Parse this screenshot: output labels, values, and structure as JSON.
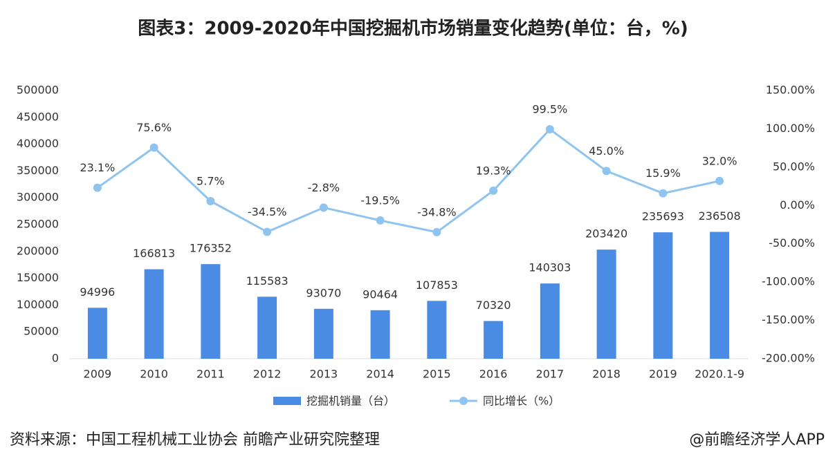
{
  "chart_data": {
    "type": "bar-line",
    "title": "图表3：2009-2020年中国挖掘机市场销量变化趋势(单位：台，%)",
    "categories": [
      "2009",
      "2010",
      "2011",
      "2012",
      "2013",
      "2014",
      "2015",
      "2016",
      "2017",
      "2018",
      "2019",
      "2020.1-9"
    ],
    "series": [
      {
        "name": "挖掘机销量（台）",
        "type": "bar",
        "color": "#4a8be3",
        "values": [
          94996,
          166813,
          176352,
          115583,
          93070,
          90464,
          107853,
          70320,
          140303,
          203420,
          235693,
          236508
        ]
      },
      {
        "name": "同比增长（%）",
        "type": "line",
        "axis": "y2",
        "color": "#8fc4f0",
        "values": [
          23.1,
          75.6,
          5.7,
          -34.5,
          -2.8,
          -19.5,
          -34.8,
          19.3,
          99.5,
          45.0,
          15.9,
          32.0
        ],
        "value_labels": [
          "23.1%",
          "75.6%",
          "5.7%",
          "-34.5%",
          "-2.8%",
          "-19.5%",
          "-34.8%",
          "19.3%",
          "99.5%",
          "45.0%",
          "15.9%",
          "32.0%"
        ]
      }
    ],
    "ylim": [
      0,
      500000
    ],
    "yticks": [
      0,
      50000,
      100000,
      150000,
      200000,
      250000,
      300000,
      350000,
      400000,
      450000,
      500000
    ],
    "y2lim": [
      -200,
      150
    ],
    "y2ticks": [
      {
        "value": -200,
        "label": "-200.00%"
      },
      {
        "value": -150,
        "label": "-150.00%"
      },
      {
        "value": -100,
        "label": "-100.00%"
      },
      {
        "value": -50,
        "label": "-50.00%"
      },
      {
        "value": 0,
        "label": "0.00%"
      },
      {
        "value": 50,
        "label": "50.00%"
      },
      {
        "value": 100,
        "label": "100.00%"
      },
      {
        "value": 150,
        "label": "150.00%"
      }
    ],
    "source": "资料来源：中国工程机械工业协会 前瞻产业研究院整理",
    "credit": "@前瞻经济学人APP"
  }
}
